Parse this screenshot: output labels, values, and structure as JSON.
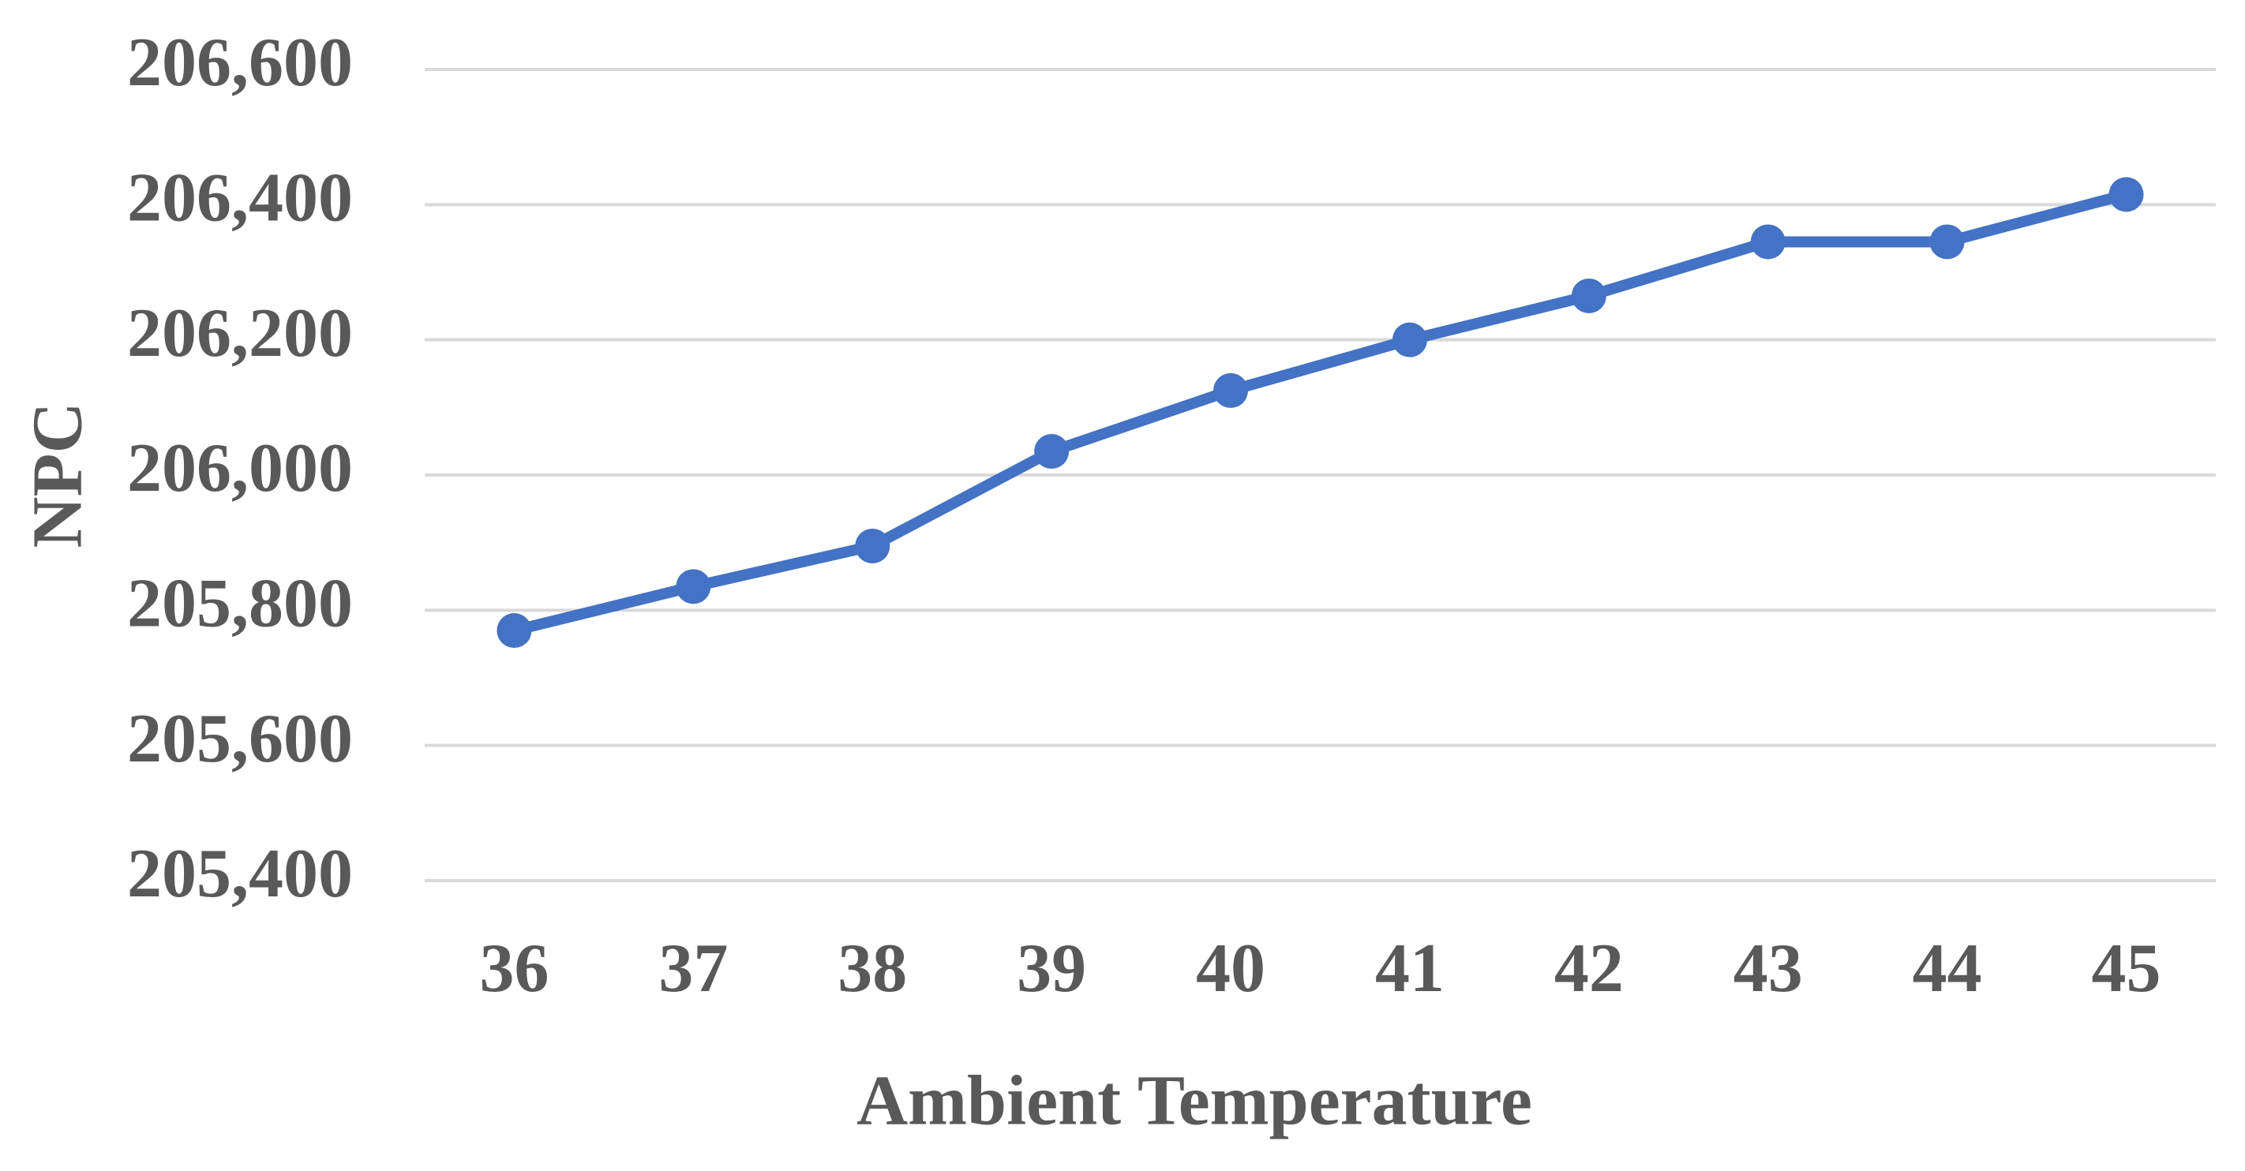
{
  "chart_data": {
    "type": "line",
    "x_label": "Ambient Temperature",
    "y_label": "NPC",
    "categories": [
      "36",
      "37",
      "38",
      "39",
      "40",
      "41",
      "42",
      "43",
      "44",
      "45"
    ],
    "series": [
      {
        "name": "NPC",
        "color": "#4472c4",
        "values": [
          205770,
          205835,
          205895,
          206035,
          206125,
          206200,
          206265,
          206345,
          206345,
          206415
        ]
      }
    ],
    "ylim": [
      205400,
      206600
    ],
    "yticks": [
      {
        "value": 205400,
        "label": "205,400"
      },
      {
        "value": 205600,
        "label": "205,600"
      },
      {
        "value": 205800,
        "label": "205,800"
      },
      {
        "value": 206000,
        "label": "206,000"
      },
      {
        "value": 206200,
        "label": "206,200"
      },
      {
        "value": 206400,
        "label": "206,400"
      },
      {
        "value": 206600,
        "label": "206,600"
      }
    ],
    "grid": true
  }
}
